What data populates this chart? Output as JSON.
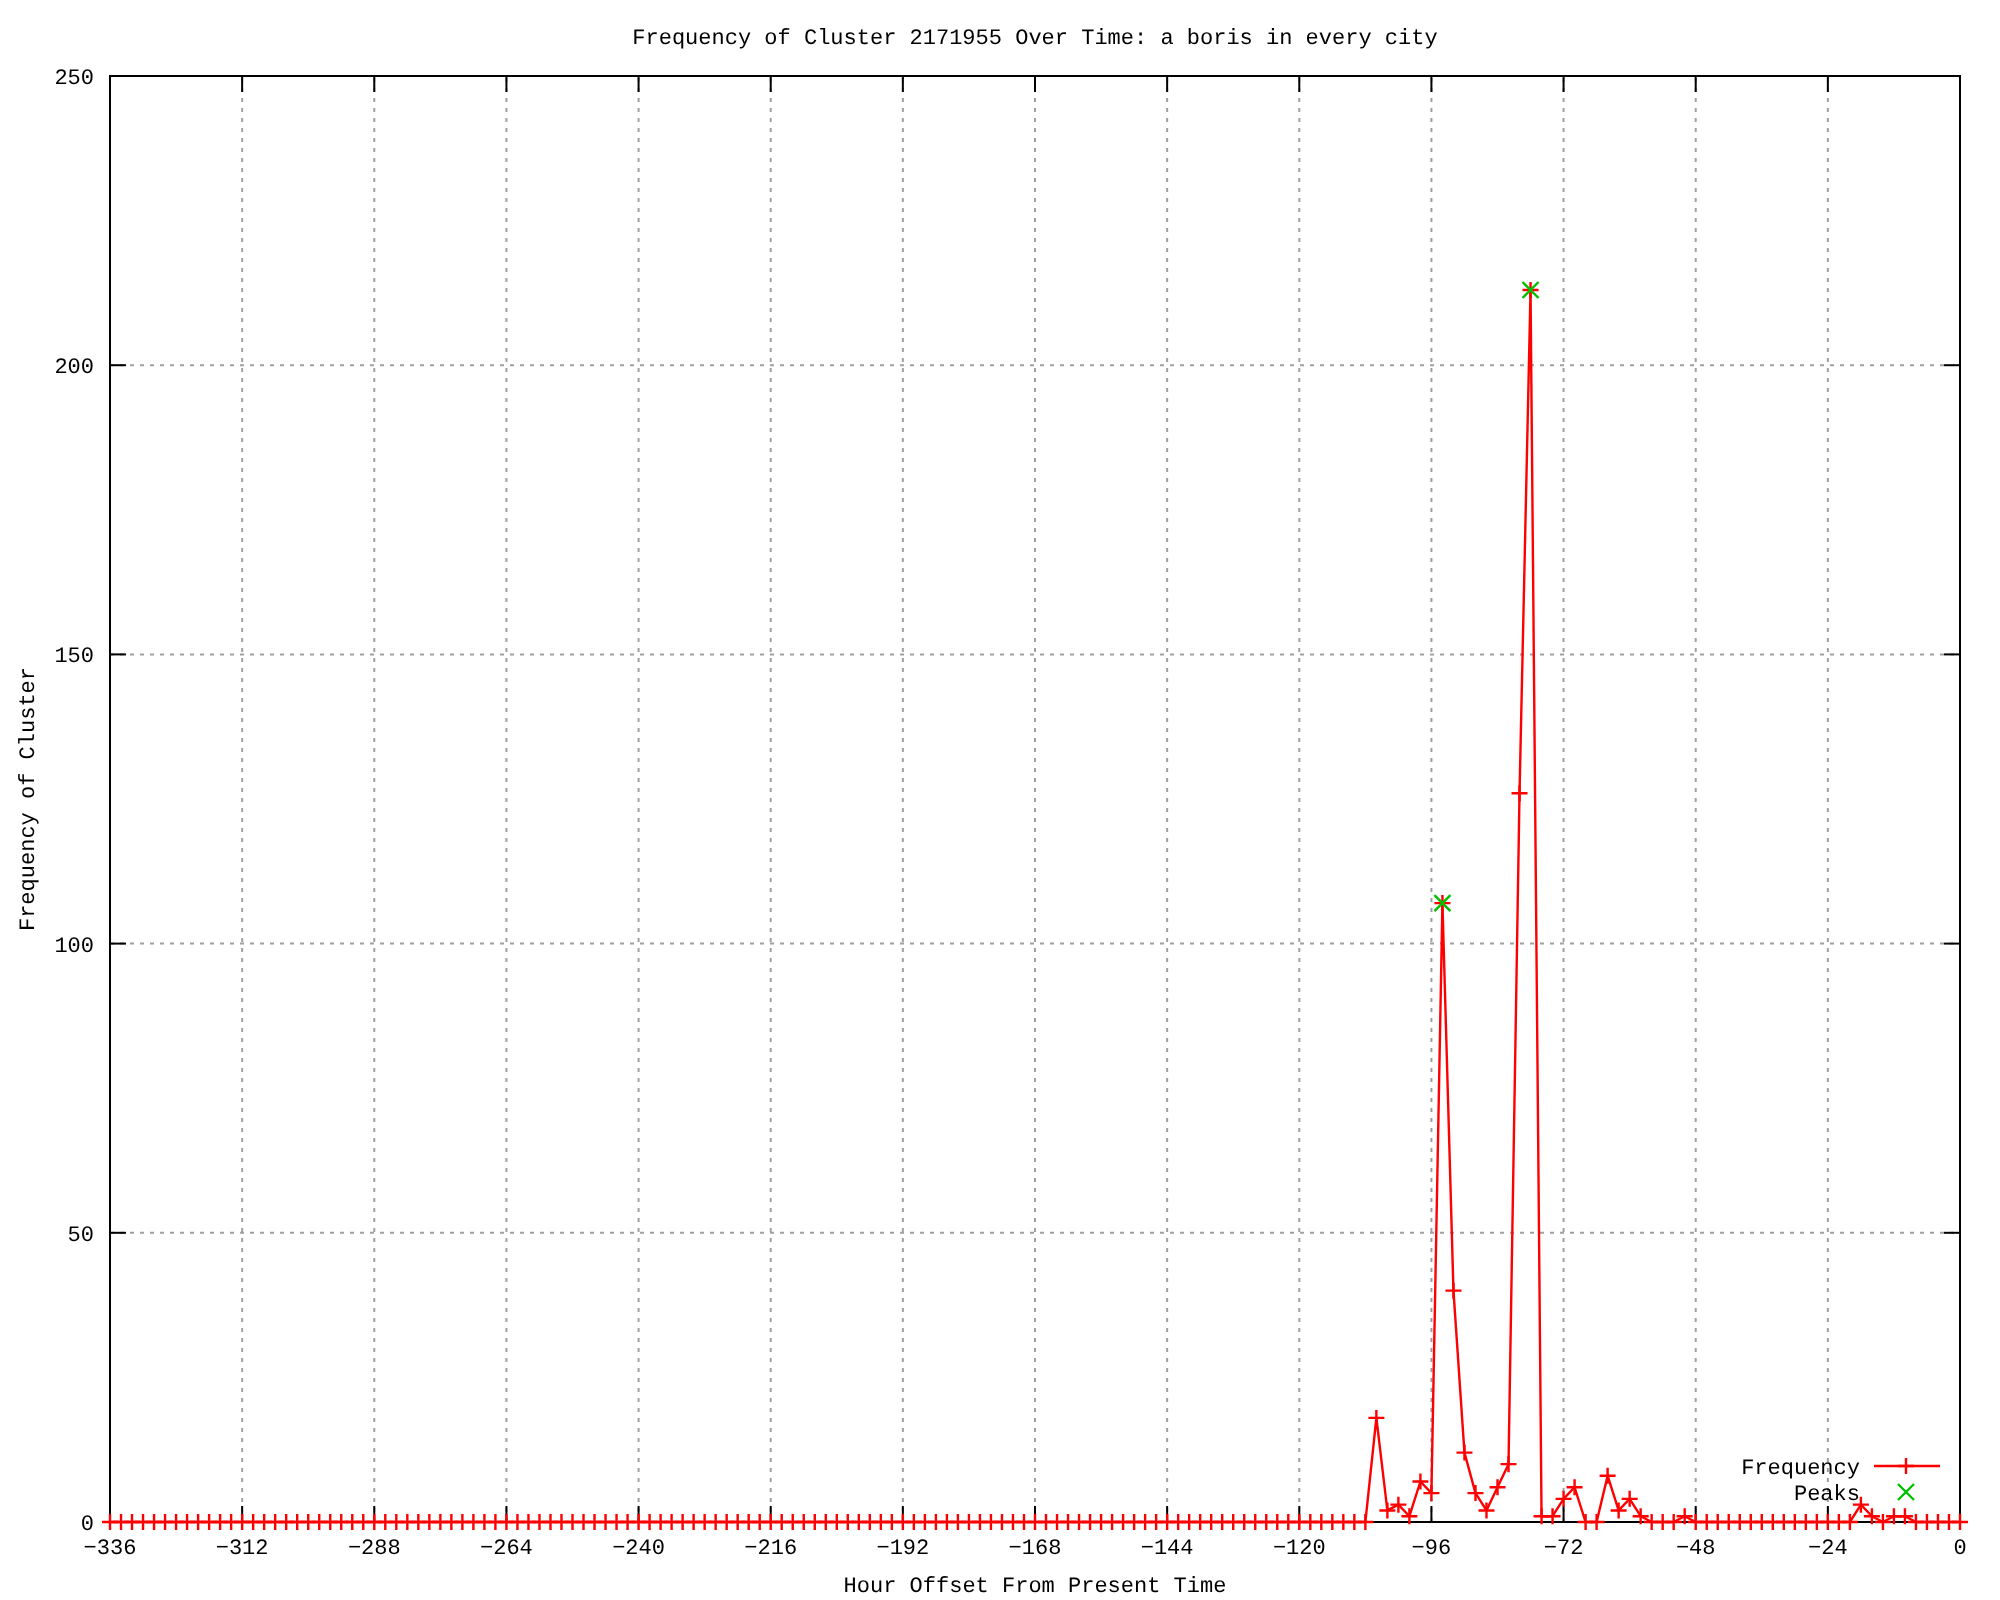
{
  "chart_data": {
    "type": "line",
    "title": "Frequency of Cluster 2171955 Over Time: a boris in every city",
    "xlabel": "Hour Offset From Present Time",
    "ylabel": "Frequency of Cluster",
    "x": [
      -336,
      -334,
      -332,
      -330,
      -328,
      -326,
      -324,
      -322,
      -320,
      -318,
      -316,
      -314,
      -312,
      -310,
      -308,
      -306,
      -304,
      -302,
      -300,
      -298,
      -296,
      -294,
      -292,
      -290,
      -288,
      -286,
      -284,
      -282,
      -280,
      -278,
      -276,
      -274,
      -272,
      -270,
      -268,
      -266,
      -264,
      -262,
      -260,
      -258,
      -256,
      -254,
      -252,
      -250,
      -248,
      -246,
      -244,
      -242,
      -240,
      -238,
      -236,
      -234,
      -232,
      -230,
      -228,
      -226,
      -224,
      -222,
      -220,
      -218,
      -216,
      -214,
      -212,
      -210,
      -208,
      -206,
      -204,
      -202,
      -200,
      -198,
      -196,
      -194,
      -192,
      -190,
      -188,
      -186,
      -184,
      -182,
      -180,
      -178,
      -176,
      -174,
      -172,
      -170,
      -168,
      -166,
      -164,
      -162,
      -160,
      -158,
      -156,
      -154,
      -152,
      -150,
      -148,
      -146,
      -144,
      -142,
      -140,
      -138,
      -136,
      -134,
      -132,
      -130,
      -128,
      -126,
      -124,
      -122,
      -120,
      -118,
      -116,
      -114,
      -112,
      -110,
      -108,
      -106,
      -104,
      -102,
      -100,
      -98,
      -96,
      -94,
      -92,
      -90,
      -88,
      -86,
      -84,
      -82,
      -80,
      -78,
      -76,
      -74,
      -72,
      -70,
      -68,
      -66,
      -64,
      -62,
      -60,
      -58,
      -56,
      -54,
      -52,
      -50,
      -48,
      -46,
      -44,
      -42,
      -40,
      -38,
      -36,
      -34,
      -32,
      -30,
      -28,
      -26,
      -24,
      -22,
      -20,
      -18,
      -16,
      -14,
      -12,
      -10,
      -8,
      -6,
      -4,
      -2,
      0
    ],
    "series": [
      {
        "name": "Frequency",
        "color": "#ff0000",
        "marker": "cross",
        "values": [
          0,
          0,
          0,
          0,
          0,
          0,
          0,
          0,
          0,
          0,
          0,
          0,
          0,
          0,
          0,
          0,
          0,
          0,
          0,
          0,
          0,
          0,
          0,
          0,
          0,
          0,
          0,
          0,
          0,
          0,
          0,
          0,
          0,
          0,
          0,
          0,
          0,
          0,
          0,
          0,
          0,
          0,
          0,
          0,
          0,
          0,
          0,
          0,
          0,
          0,
          0,
          0,
          0,
          0,
          0,
          0,
          0,
          0,
          0,
          0,
          0,
          0,
          0,
          0,
          0,
          0,
          0,
          0,
          0,
          0,
          0,
          0,
          0,
          0,
          0,
          0,
          0,
          0,
          0,
          0,
          0,
          0,
          0,
          0,
          0,
          0,
          0,
          0,
          0,
          0,
          0,
          0,
          0,
          0,
          0,
          0,
          0,
          0,
          0,
          0,
          0,
          0,
          0,
          0,
          0,
          0,
          0,
          0,
          0,
          0,
          0,
          0,
          0,
          0,
          0,
          18,
          2,
          3,
          1,
          7,
          5,
          107,
          40,
          12,
          5,
          2,
          6,
          10,
          126,
          213,
          1,
          1,
          4,
          6,
          0,
          0,
          8,
          2,
          4,
          1,
          0,
          0,
          0,
          1,
          0,
          0,
          0,
          0,
          0,
          0,
          0,
          0,
          0,
          0,
          0,
          0,
          0,
          0,
          0,
          3,
          1,
          0,
          1,
          1,
          0,
          0,
          0,
          0,
          0
        ]
      },
      {
        "name": "Peaks",
        "type": "scatter",
        "color": "#00c000",
        "marker": "cross",
        "x": [
          -94,
          -78
        ],
        "values": [
          107,
          213
        ]
      }
    ],
    "xlim": [
      -336,
      0
    ],
    "xticks": [
      -336,
      -312,
      -288,
      -264,
      -240,
      -216,
      -192,
      -168,
      -144,
      -120,
      -96,
      -72,
      -48,
      -24,
      0
    ],
    "ylim": [
      0,
      250
    ],
    "yticks": [
      0,
      50,
      100,
      150,
      200,
      250
    ],
    "grid": true,
    "legend": "bottom right"
  }
}
